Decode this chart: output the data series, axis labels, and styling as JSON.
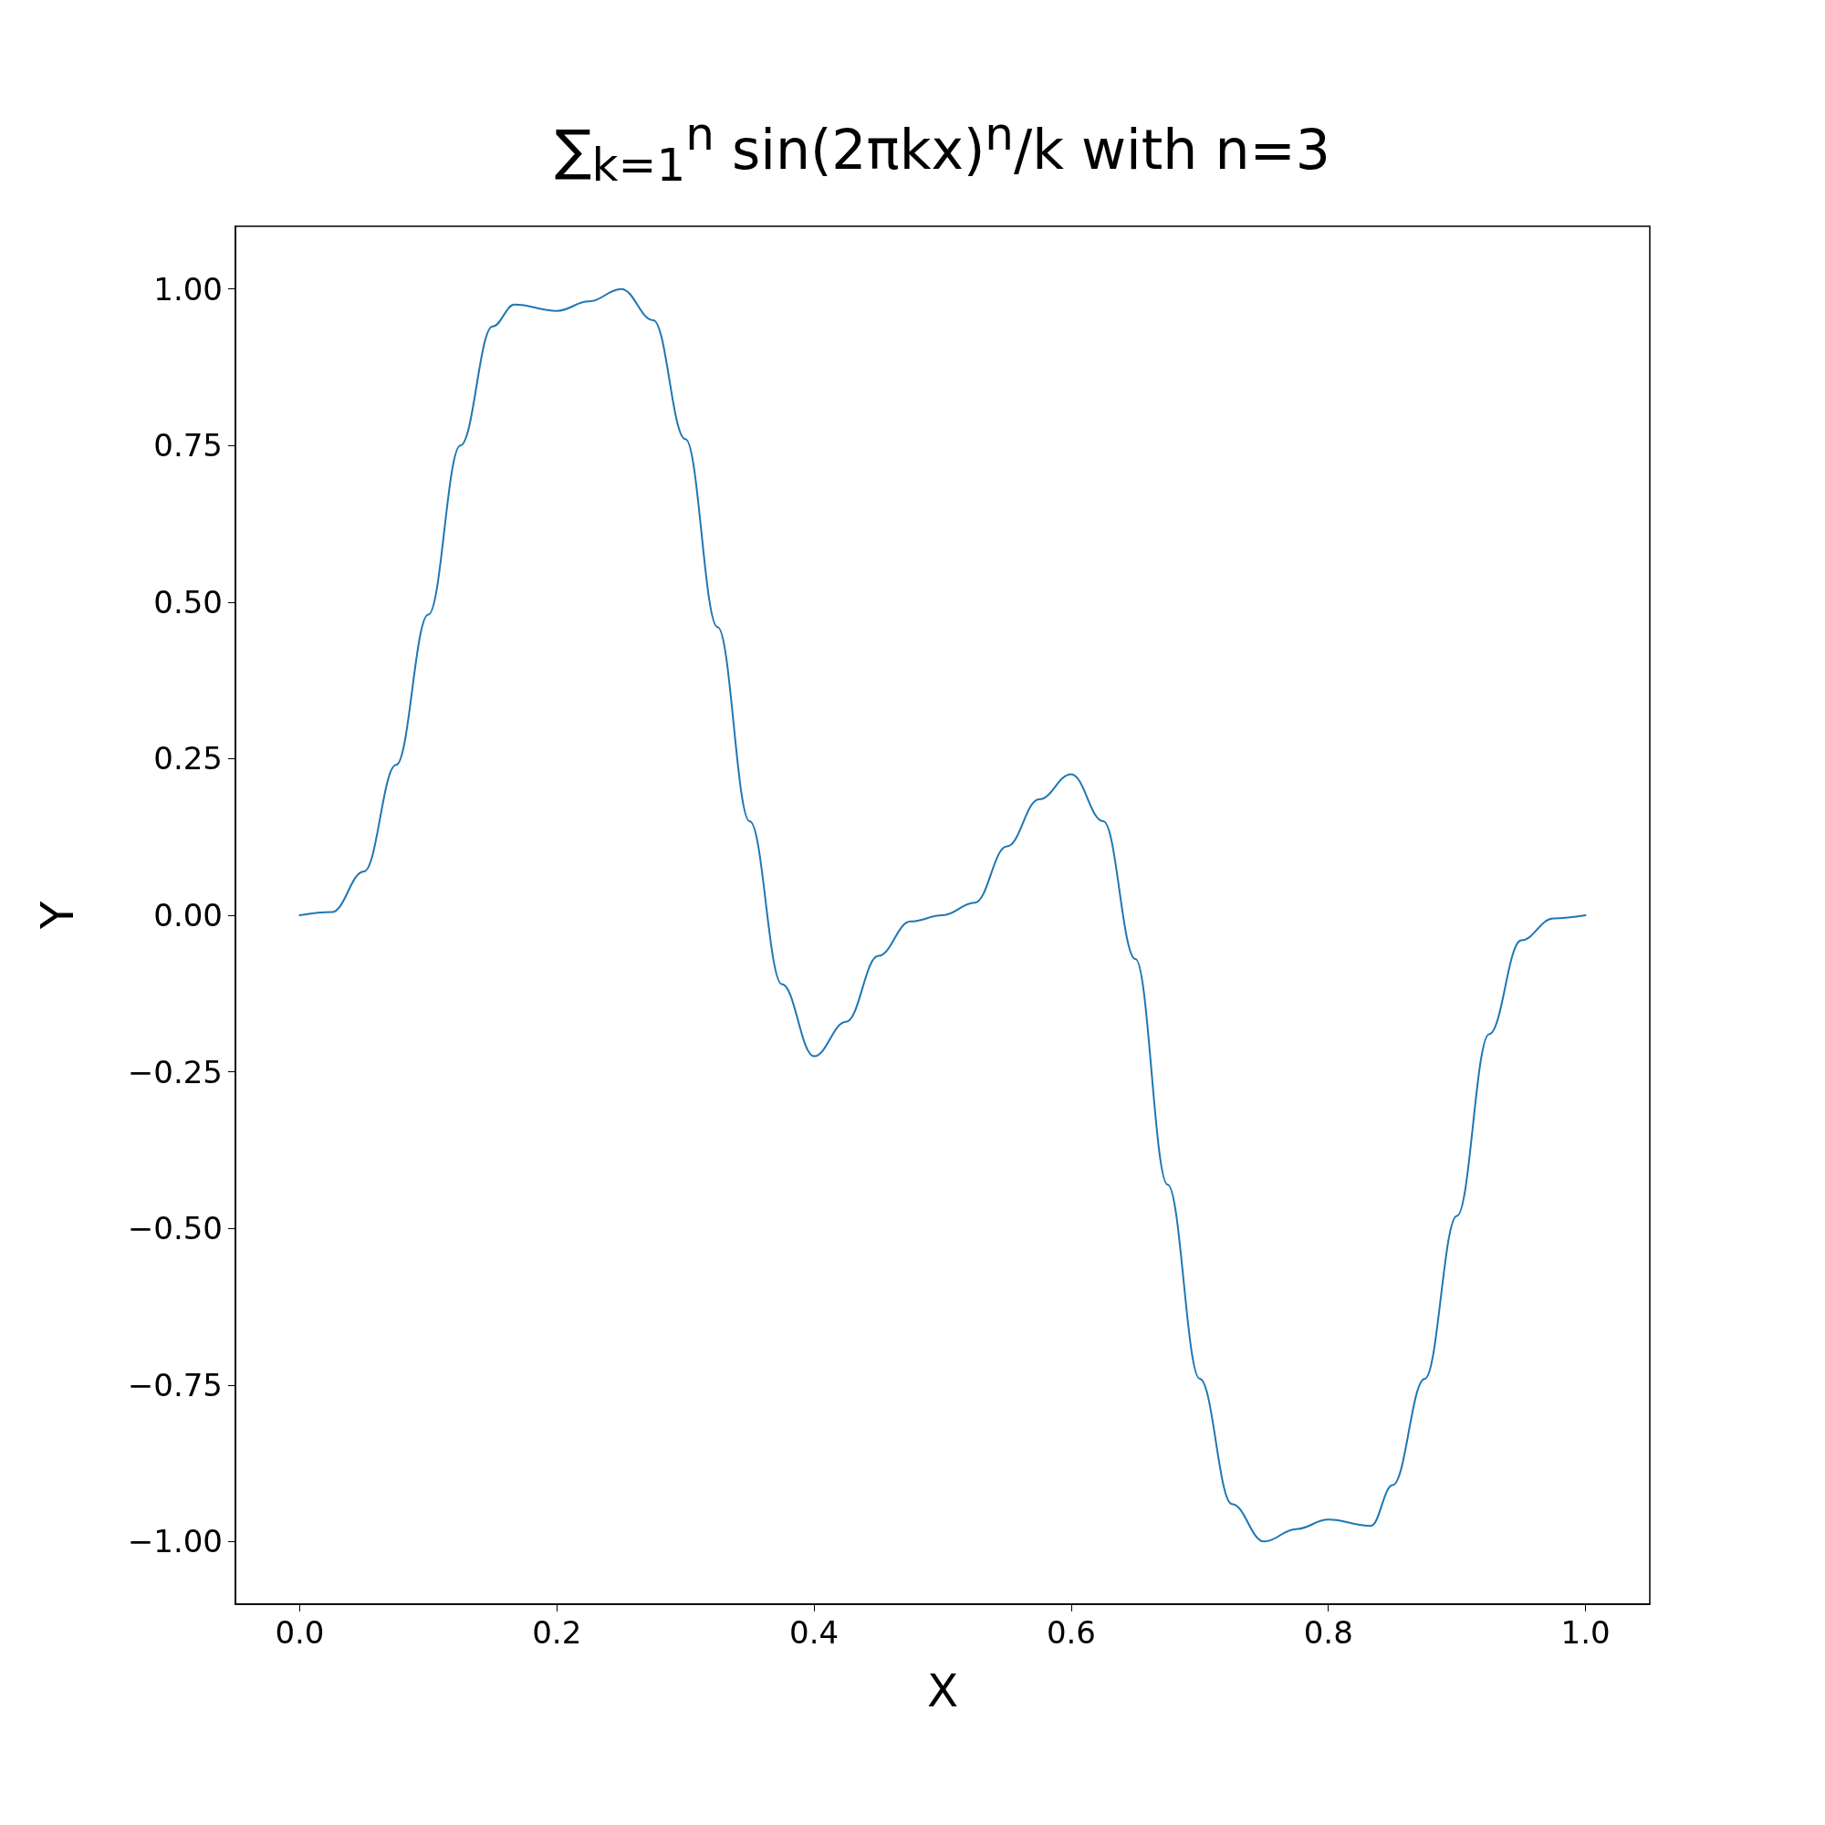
{
  "chart_data": {
    "type": "line",
    "title": "∑$_{k=1}$$^{n}$ sin(2πkx)$^{n}$/k with n=3",
    "xlabel": "X",
    "ylabel": "Y",
    "x": [
      0,
      0.025,
      0.05,
      0.075,
      0.1,
      0.125,
      0.15,
      0.167,
      0.2,
      0.225,
      0.25,
      0.275,
      0.3,
      0.325,
      0.35,
      0.375,
      0.4,
      0.425,
      0.45,
      0.475,
      0.5,
      0.525,
      0.55,
      0.575,
      0.6,
      0.625,
      0.65,
      0.675,
      0.7,
      0.725,
      0.75,
      0.775,
      0.8,
      0.833,
      0.85,
      0.875,
      0.9,
      0.925,
      0.95,
      0.975,
      1
    ],
    "series": [
      {
        "color": "#1f77b4",
        "values": [
          0,
          0.005,
          0.07,
          0.24,
          0.48,
          0.75,
          0.94,
          0.975,
          0.965,
          0.98,
          1.0,
          0.95,
          0.76,
          0.46,
          0.15,
          -0.11,
          -0.225,
          -0.17,
          -0.065,
          -0.01,
          0,
          0.02,
          0.11,
          0.185,
          0.225,
          0.15,
          -0.07,
          -0.43,
          -0.74,
          -0.94,
          -1.0,
          -0.98,
          -0.965,
          -0.975,
          -0.91,
          -0.74,
          -0.48,
          -0.19,
          -0.04,
          -0.005,
          0
        ]
      }
    ],
    "xlim": [
      -0.05,
      1.05
    ],
    "xticks": [
      {
        "value": 0,
        "label": "0.0"
      },
      {
        "value": 0.2,
        "label": "0.2"
      },
      {
        "value": 0.4,
        "label": "0.4"
      },
      {
        "value": 0.6,
        "label": "0.6"
      },
      {
        "value": 0.8,
        "label": "0.8"
      },
      {
        "value": 1,
        "label": "1.0"
      }
    ],
    "ylim": [
      -1.1,
      1.1
    ],
    "yticks": [
      {
        "value": -1,
        "label": "−1.00"
      },
      {
        "value": -0.75,
        "label": "−0.75"
      },
      {
        "value": -0.5,
        "label": "−0.50"
      },
      {
        "value": -0.25,
        "label": "−0.25"
      },
      {
        "value": 0,
        "label": "0.00"
      },
      {
        "value": 0.25,
        "label": "0.25"
      },
      {
        "value": 0.5,
        "label": "0.50"
      },
      {
        "value": 0.75,
        "label": "0.75"
      },
      {
        "value": 1,
        "label": "1.00"
      }
    ],
    "grid": false,
    "marker": "none",
    "line_style": "solid"
  }
}
